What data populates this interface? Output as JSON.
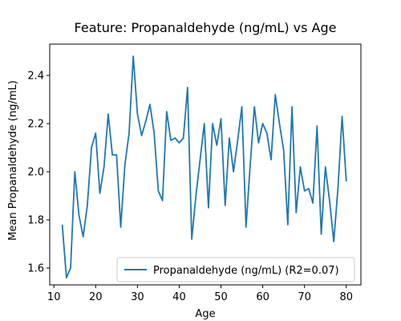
{
  "chart_data": {
    "type": "line",
    "title": "Feature: Propanaldehyde (ng/mL) vs Age",
    "xlabel": "Age",
    "ylabel": "Mean Propanaldehyde (ng/mL)",
    "xlim": [
      9,
      83.5
    ],
    "ylim": [
      1.53,
      2.53
    ],
    "xticks": [
      10,
      20,
      30,
      40,
      50,
      60,
      70,
      80
    ],
    "yticks": [
      1.6,
      1.8,
      2.0,
      2.2,
      2.4
    ],
    "xtick_labels": [
      "10",
      "20",
      "30",
      "40",
      "50",
      "60",
      "70",
      "80"
    ],
    "ytick_labels": [
      "1.6",
      "1.8",
      "2.0",
      "2.2",
      "2.4"
    ],
    "grid": false,
    "legend_position": "bottom-right",
    "series": [
      {
        "name": "Propanaldehyde (ng/mL) (R2=0.07)",
        "color": "#1f77b4",
        "x": [
          12,
          13,
          14,
          15,
          16,
          17,
          18,
          19,
          20,
          21,
          22,
          23,
          24,
          25,
          26,
          27,
          28,
          29,
          30,
          31,
          32,
          33,
          34,
          35,
          36,
          37,
          38,
          39,
          40,
          41,
          42,
          43,
          44,
          45,
          46,
          47,
          48,
          49,
          50,
          51,
          52,
          53,
          54,
          55,
          56,
          57,
          58,
          59,
          60,
          61,
          62,
          63,
          64,
          65,
          66,
          67,
          68,
          69,
          70,
          71,
          72,
          73,
          74,
          75,
          76,
          77,
          78,
          79,
          80
        ],
        "y": [
          1.78,
          1.56,
          1.6,
          2.0,
          1.82,
          1.73,
          1.86,
          2.1,
          2.16,
          1.91,
          2.02,
          2.24,
          2.07,
          2.07,
          1.77,
          2.03,
          2.16,
          2.48,
          2.24,
          2.15,
          2.21,
          2.28,
          2.16,
          1.92,
          1.88,
          2.25,
          2.13,
          2.14,
          2.12,
          2.14,
          2.35,
          1.72,
          1.9,
          2.05,
          2.2,
          1.85,
          2.2,
          2.11,
          2.22,
          1.86,
          2.14,
          2.0,
          2.13,
          2.27,
          1.77,
          2.03,
          2.27,
          2.12,
          2.2,
          2.16,
          2.05,
          2.32,
          2.2,
          2.09,
          1.78,
          2.27,
          1.83,
          2.02,
          1.92,
          1.93,
          1.87,
          2.19,
          1.74,
          2.02,
          1.88,
          1.71,
          1.93,
          2.23,
          1.96
        ]
      }
    ]
  }
}
